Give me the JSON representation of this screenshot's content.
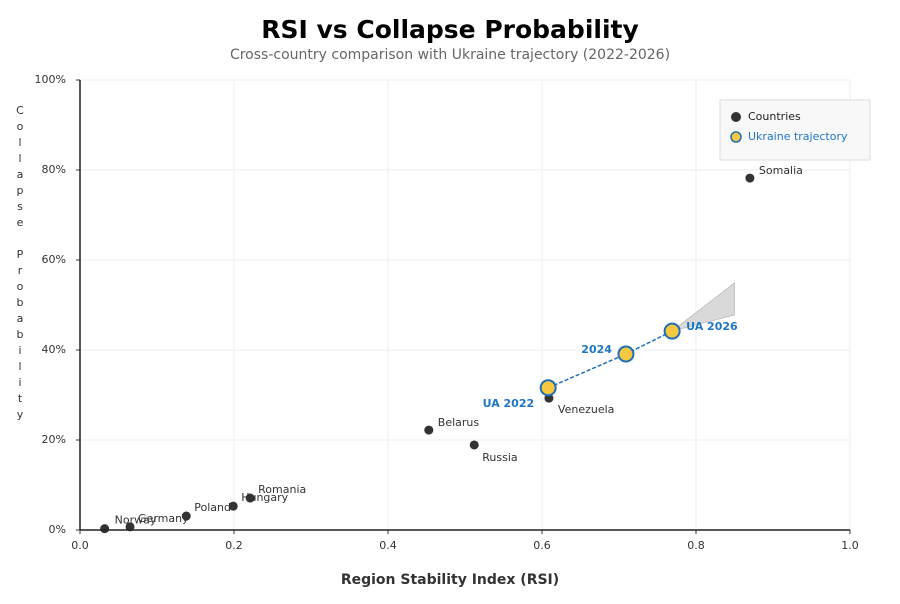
{
  "chart_data": {
    "type": "scatter",
    "title": "RSI vs Collapse Probability",
    "subtitle": "Cross-country comparison with Ukraine trajectory (2022-2026)",
    "x_label": "Region Stability Index (RSI)",
    "y_label": "Collapse Probability",
    "xlim": [
      0,
      1
    ],
    "ylim": [
      0,
      100
    ],
    "xticks": [
      {
        "value": 0,
        "label": "0.0"
      },
      0.2,
      0.4,
      0.6,
      0.8,
      {
        "value": 1,
        "label": "1.0"
      }
    ],
    "yticks": [
      {
        "value": 0,
        "label": "0%"
      },
      {
        "value": 20,
        "label": "20%"
      },
      {
        "value": 40,
        "label": "40%"
      },
      {
        "value": 60,
        "label": "60%"
      },
      {
        "value": 80,
        "label": "80%"
      },
      {
        "value": 100,
        "label": "100%"
      }
    ],
    "grid": true,
    "legend": "upper right",
    "series": [
      {
        "name": "Countries",
        "color": "#333333",
        "labels": [
          "Norway",
          "Germany",
          "Poland",
          "Hungary",
          "Romania",
          "Belarus",
          "Russia",
          "Venezuela",
          "Somalia"
        ],
        "x": [
          0.032,
          0.065,
          0.138,
          0.199,
          0.221,
          0.453,
          0.512,
          0.609,
          0.87
        ],
        "values": [
          0.3,
          0.7,
          3.1,
          5.3,
          7.1,
          22.2,
          18.9,
          29.3,
          78.2
        ]
      },
      {
        "name": "Ukraine trajectory",
        "color": "#f5c842",
        "edge_color": "#1f6fb5",
        "label_color": "#1f77c4",
        "labels": [
          "UA 2022",
          "2024",
          "UA 2026"
        ],
        "x": [
          0.608,
          0.709,
          0.769
        ],
        "values": [
          31.6,
          39.1,
          44.2
        ]
      }
    ],
    "projection": {
      "color": "#d9d9d9",
      "x": [
        0.769,
        0.85
      ],
      "low": [
        44.2,
        47.8
      ],
      "high": [
        44.2,
        54.9
      ]
    }
  }
}
